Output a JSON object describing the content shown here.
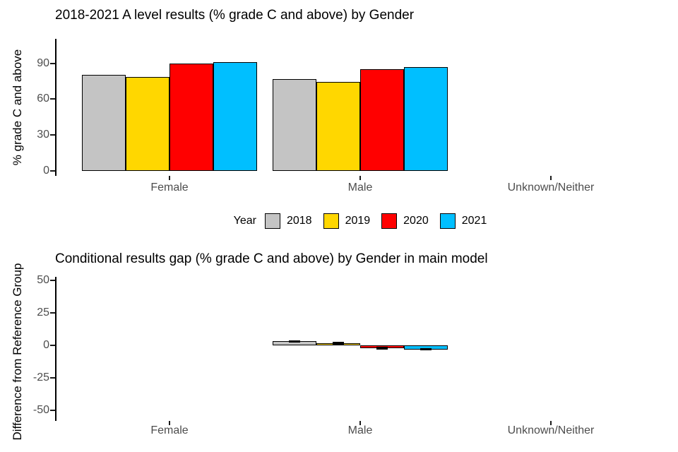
{
  "figure_background": "#ffffff",
  "legend": {
    "title": "Year",
    "entries": [
      {
        "label": "2018",
        "color": "#c4c4c4"
      },
      {
        "label": "2019",
        "color": "#ffd700"
      },
      {
        "label": "2020",
        "color": "#ff0000"
      },
      {
        "label": "2021",
        "color": "#00bfff"
      }
    ]
  },
  "chart_data": [
    {
      "type": "bar",
      "title": "2018-2021 A level results (% grade C and above) by Gender",
      "xlabel": "",
      "ylabel": "% grade C and above",
      "categories": [
        "Female",
        "Male",
        "Unknown/Neither"
      ],
      "yticks": [
        0,
        30,
        60,
        90
      ],
      "ylim": [
        0,
        110
      ],
      "grid": false,
      "legend_position": "bottom",
      "series": [
        {
          "name": "2018",
          "color": "#c4c4c4",
          "values": [
            80,
            77,
            null
          ]
        },
        {
          "name": "2019",
          "color": "#ffd700",
          "values": [
            78.5,
            74.5,
            null
          ]
        },
        {
          "name": "2020",
          "color": "#ff0000",
          "values": [
            90,
            85,
            null
          ]
        },
        {
          "name": "2021",
          "color": "#00bfff",
          "values": [
            91,
            86.5,
            null
          ]
        }
      ]
    },
    {
      "type": "bar",
      "title": "Conditional results gap (% grade C and above) by Gender in main model",
      "xlabel": "",
      "ylabel": "Difference from Reference Group",
      "categories": [
        "Female",
        "Male",
        "Unknown/Neither"
      ],
      "yticks": [
        50,
        25,
        0,
        -25,
        -50
      ],
      "ylim": [
        -55,
        55
      ],
      "grid": false,
      "legend_position": "none",
      "series": [
        {
          "name": "2018",
          "color": "#c4c4c4",
          "values": [
            null,
            3,
            null
          ],
          "errors": [
            null,
            1,
            null
          ]
        },
        {
          "name": "2019",
          "color": "#ffd700",
          "values": [
            null,
            1.5,
            null
          ],
          "errors": [
            null,
            1,
            null
          ]
        },
        {
          "name": "2020",
          "color": "#ff0000",
          "values": [
            null,
            -2,
            null
          ],
          "errors": [
            null,
            1,
            null
          ]
        },
        {
          "name": "2021",
          "color": "#00bfff",
          "values": [
            null,
            -3,
            null
          ],
          "errors": [
            null,
            1,
            null
          ]
        }
      ]
    }
  ]
}
